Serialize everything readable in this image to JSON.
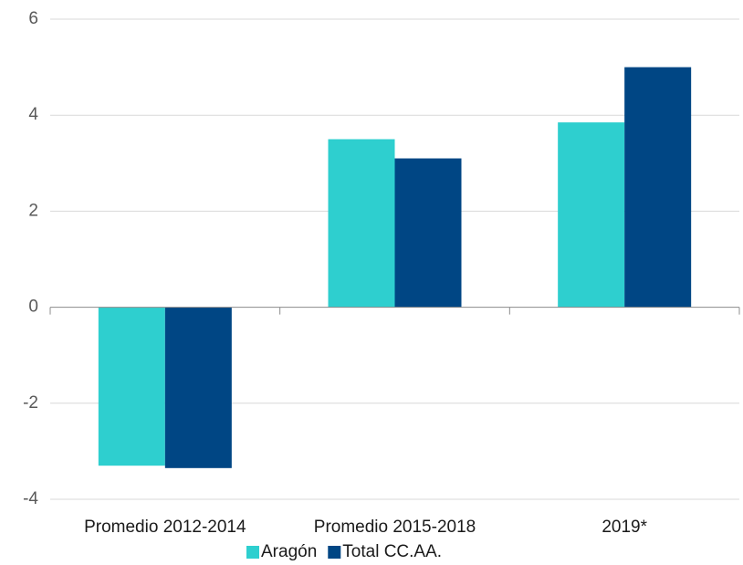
{
  "chart_data": {
    "type": "bar",
    "categories": [
      "Promedio 2012-2014",
      "Promedio 2015-2018",
      "2019*"
    ],
    "series": [
      {
        "name": "Aragón",
        "color": "#2ecfcf",
        "values": [
          -3.3,
          3.5,
          3.85
        ]
      },
      {
        "name": "Total CC.AA.",
        "color": "#004684",
        "values": [
          -3.35,
          3.1,
          5.0
        ]
      }
    ],
    "ylim": [
      -4,
      6
    ],
    "yticks": [
      -4,
      -2,
      0,
      2,
      4,
      6
    ],
    "grid": true,
    "legend": "bottom"
  }
}
